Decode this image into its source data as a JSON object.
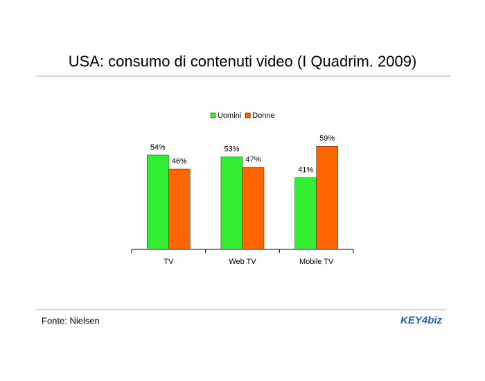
{
  "chart_data": {
    "type": "bar",
    "title": "USA: consumo di contenuti video (I Quadrim. 2009)",
    "categories": [
      "TV",
      "Web TV",
      "Mobile TV"
    ],
    "series": [
      {
        "name": "Uomini",
        "color": "#33ee33",
        "values": [
          54,
          53,
          41
        ],
        "value_labels": [
          "54%",
          "53%",
          "41%"
        ]
      },
      {
        "name": "Donne",
        "color": "#ff6600",
        "values": [
          46,
          47,
          59
        ],
        "value_labels": [
          "46%",
          "47%",
          "59%"
        ]
      }
    ],
    "legend": "top",
    "source": "Fonte: Nielsen",
    "logo": "KEY4biz"
  }
}
